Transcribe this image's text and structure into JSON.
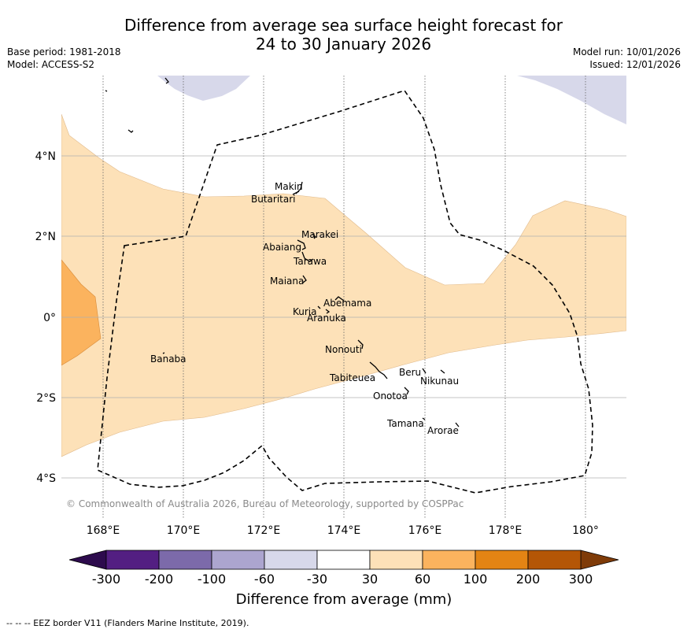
{
  "title": {
    "line1": "Difference from average sea surface height forecast for",
    "line2": "24 to 30 January 2026"
  },
  "meta_left": {
    "base_period": "Base period: 1981-2018",
    "model": "Model: ACCESS-S2"
  },
  "meta_right": {
    "model_run": "Model run: 10/01/2026",
    "issued": "Issued: 12/01/2026"
  },
  "map": {
    "lat_labels": [
      "4°N",
      "2°N",
      "0°",
      "2°S",
      "4°S"
    ],
    "lon_labels": [
      "168°E",
      "170°E",
      "172°E",
      "174°E",
      "176°E",
      "178°E",
      "180°"
    ],
    "places": [
      {
        "name": "Makin"
      },
      {
        "name": "Butaritari"
      },
      {
        "name": "Marakei"
      },
      {
        "name": "Abaiang"
      },
      {
        "name": "Tarawa"
      },
      {
        "name": "Maiana"
      },
      {
        "name": "Abemama"
      },
      {
        "name": "Kuria"
      },
      {
        "name": "Aranuka"
      },
      {
        "name": "Banaba"
      },
      {
        "name": "Nonouti"
      },
      {
        "name": "Tabiteuea"
      },
      {
        "name": "Beru"
      },
      {
        "name": "Nikunau"
      },
      {
        "name": "Onotoa"
      },
      {
        "name": "Tamana"
      },
      {
        "name": "Arorae"
      }
    ],
    "copyright": "© Commonwealth of Australia 2026, Bureau of Meteorology, supported by COSPPac"
  },
  "colorbar": {
    "ticks": [
      "-300",
      "-200",
      "-100",
      "-60",
      "-30",
      "30",
      "60",
      "100",
      "200",
      "300"
    ],
    "colors": [
      "#531f82",
      "#7c6aaa",
      "#aca5cf",
      "#d7d8ea",
      "#ffffff",
      "#fde1b8",
      "#fbb35e",
      "#e38414",
      "#b45606"
    ],
    "under_color": "#2d0b4d",
    "over_color": "#7f3b08",
    "label": "Difference from average (mm)"
  },
  "footnote": "--  --  -- EEZ border V11 (Flanders Marine Institute, 2019)."
}
